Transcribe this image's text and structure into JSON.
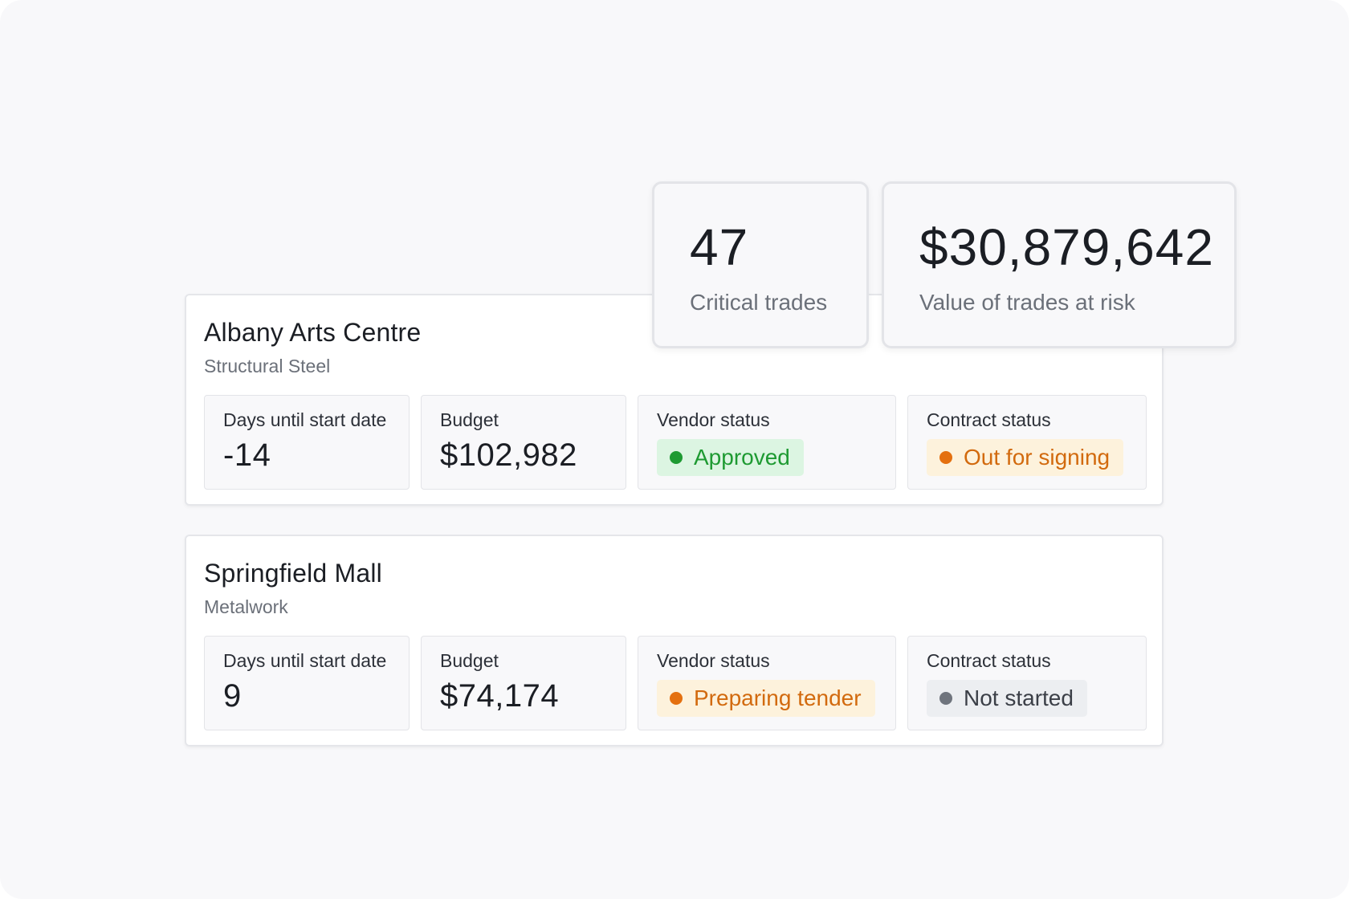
{
  "summary": {
    "critical_count": "47",
    "critical_label": "Critical trades",
    "risk_value": "$30,879,642",
    "risk_label": "Value of trades at risk"
  },
  "projects": [
    {
      "name": "Albany Arts Centre",
      "trade": "Structural Steel",
      "days_label": "Days until start date",
      "days_value": "-14",
      "budget_label": "Budget",
      "budget_value": "$102,982",
      "vendor_label": "Vendor status",
      "vendor_status": "Approved",
      "vendor_status_color": "#1e9a32",
      "contract_label": "Contract status",
      "contract_status": "Out for signing",
      "contract_status_color": "#e4700f"
    },
    {
      "name": "Springfield Mall",
      "trade": "Metalwork",
      "days_label": "Days until start date",
      "days_value": "9",
      "budget_label": "Budget",
      "budget_value": "$74,174",
      "vendor_label": "Vendor status",
      "vendor_status": "Preparing tender",
      "vendor_status_color": "#e4700f",
      "contract_label": "Contract status",
      "contract_status": "Not started",
      "contract_status_color": "#6f747d"
    }
  ]
}
